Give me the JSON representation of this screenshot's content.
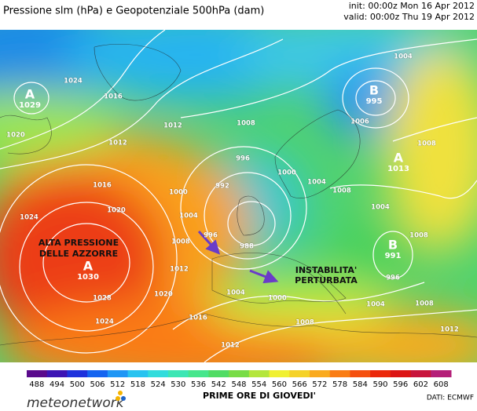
{
  "header": {
    "title": "Pressione slm (hPa) e Geopotenziale 500hPa (dam)",
    "init": "init: 00:00z Mon 16 Apr 2012",
    "valid": "valid: 00:00z Thu 19 Apr 2012"
  },
  "map": {
    "annotations": [
      "ALTA PRESSIONE",
      "DELLE AZZORRE",
      "INSTABILITA'",
      "PERTURBATA"
    ],
    "centers": [
      {
        "letter": "A",
        "value": 1029
      },
      {
        "letter": "B",
        "value": 995
      },
      {
        "letter": "A",
        "value": 1013
      },
      {
        "letter": "B",
        "value": 991
      },
      {
        "letter": "A",
        "value": 1030
      }
    ],
    "isobar_labels": [
      1024,
      1016,
      1012,
      1012,
      1008,
      1004,
      1008,
      1006,
      996,
      1000,
      992,
      1000,
      1004,
      1008,
      1004,
      1008,
      996,
      988,
      1012,
      1020,
      1016,
      1020,
      1024,
      1028,
      1024,
      1020,
      1016,
      1012,
      1004,
      1000,
      1004,
      1008,
      996,
      1004,
      1008,
      1012,
      1008
    ]
  },
  "colorbar": {
    "levels": [
      488,
      494,
      500,
      506,
      512,
      518,
      524,
      530,
      536,
      542,
      548,
      554,
      560,
      566,
      572,
      578,
      584,
      590,
      596,
      602,
      608
    ],
    "colors": [
      "#5a0a8c",
      "#3c14b4",
      "#1e32dc",
      "#1464f0",
      "#1e96f5",
      "#28c3f0",
      "#32dcdc",
      "#3ce6b4",
      "#46e68c",
      "#50dc64",
      "#78dc46",
      "#b4e63c",
      "#f0f032",
      "#f5d228",
      "#faaa1e",
      "#fa7d14",
      "#f5500f",
      "#eb280a",
      "#dc1414",
      "#c8143c",
      "#b41e78"
    ],
    "caption": "PRIME ORE DI GIOVEDI'"
  },
  "footer": {
    "source": "DATI: ECMWF",
    "logo": "meteonetwork"
  }
}
